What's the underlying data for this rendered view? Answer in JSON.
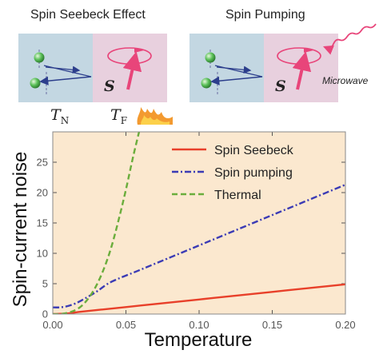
{
  "schematic": {
    "left_title": "Spin Seebeck Effect",
    "right_title": "Spin Pumping",
    "s_symbol": "S",
    "microwave_label": "Microwave",
    "tn_main": "T",
    "tn_sub": "N",
    "tf_main": "T",
    "tf_sub": "F",
    "colors": {
      "normal_metal": "#c3d7e2",
      "ferromagnet": "#e8d0de",
      "arrow_blue": "#2c3e8c",
      "magnetization": "#e8457a",
      "ball": "#5cc15a",
      "flame": "#f39a30"
    }
  },
  "chart_data": {
    "type": "line",
    "xlabel": "Temperature",
    "ylabel": "Spin-current noise",
    "xlim": [
      0,
      0.2
    ],
    "ylim": [
      0,
      30
    ],
    "xticks": [
      "0.00",
      "0.05",
      "0.10",
      "0.15",
      "0.20"
    ],
    "yticks": [
      "0",
      "5",
      "10",
      "15",
      "20",
      "25"
    ],
    "background": "#fbe8cf",
    "legend_position": "top-right",
    "series": [
      {
        "name": "Spin Seebeck",
        "color": "#e8402a",
        "dash": "solid",
        "x": [
          0,
          0.01,
          0.02,
          0.04,
          0.06,
          0.08,
          0.1,
          0.12,
          0.14,
          0.16,
          0.18,
          0.2
        ],
        "y": [
          0,
          0.1,
          0.4,
          0.9,
          1.4,
          1.9,
          2.4,
          2.9,
          3.4,
          3.9,
          4.4,
          4.9
        ]
      },
      {
        "name": "Spin pumping",
        "color": "#3b3bb5",
        "dash": "dashdot",
        "x": [
          0,
          0.005,
          0.01,
          0.015,
          0.02,
          0.03,
          0.04,
          0.06,
          0.08,
          0.1,
          0.12,
          0.14,
          0.16,
          0.18,
          0.2
        ],
        "y": [
          1.1,
          1.1,
          1.3,
          1.7,
          2.3,
          3.7,
          5.3,
          7.3,
          9.3,
          11.3,
          13.3,
          15.3,
          17.3,
          19.3,
          21.3
        ]
      },
      {
        "name": "Thermal",
        "color": "#6aad3c",
        "dash": "dashed",
        "x": [
          0,
          0.005,
          0.01,
          0.015,
          0.02,
          0.025,
          0.03,
          0.035,
          0.04,
          0.045,
          0.05,
          0.055,
          0.06
        ],
        "y": [
          0,
          0,
          0.2,
          0.6,
          1.4,
          2.8,
          4.8,
          7.5,
          11.0,
          15.5,
          20.5,
          26.0,
          31.0
        ]
      }
    ]
  }
}
